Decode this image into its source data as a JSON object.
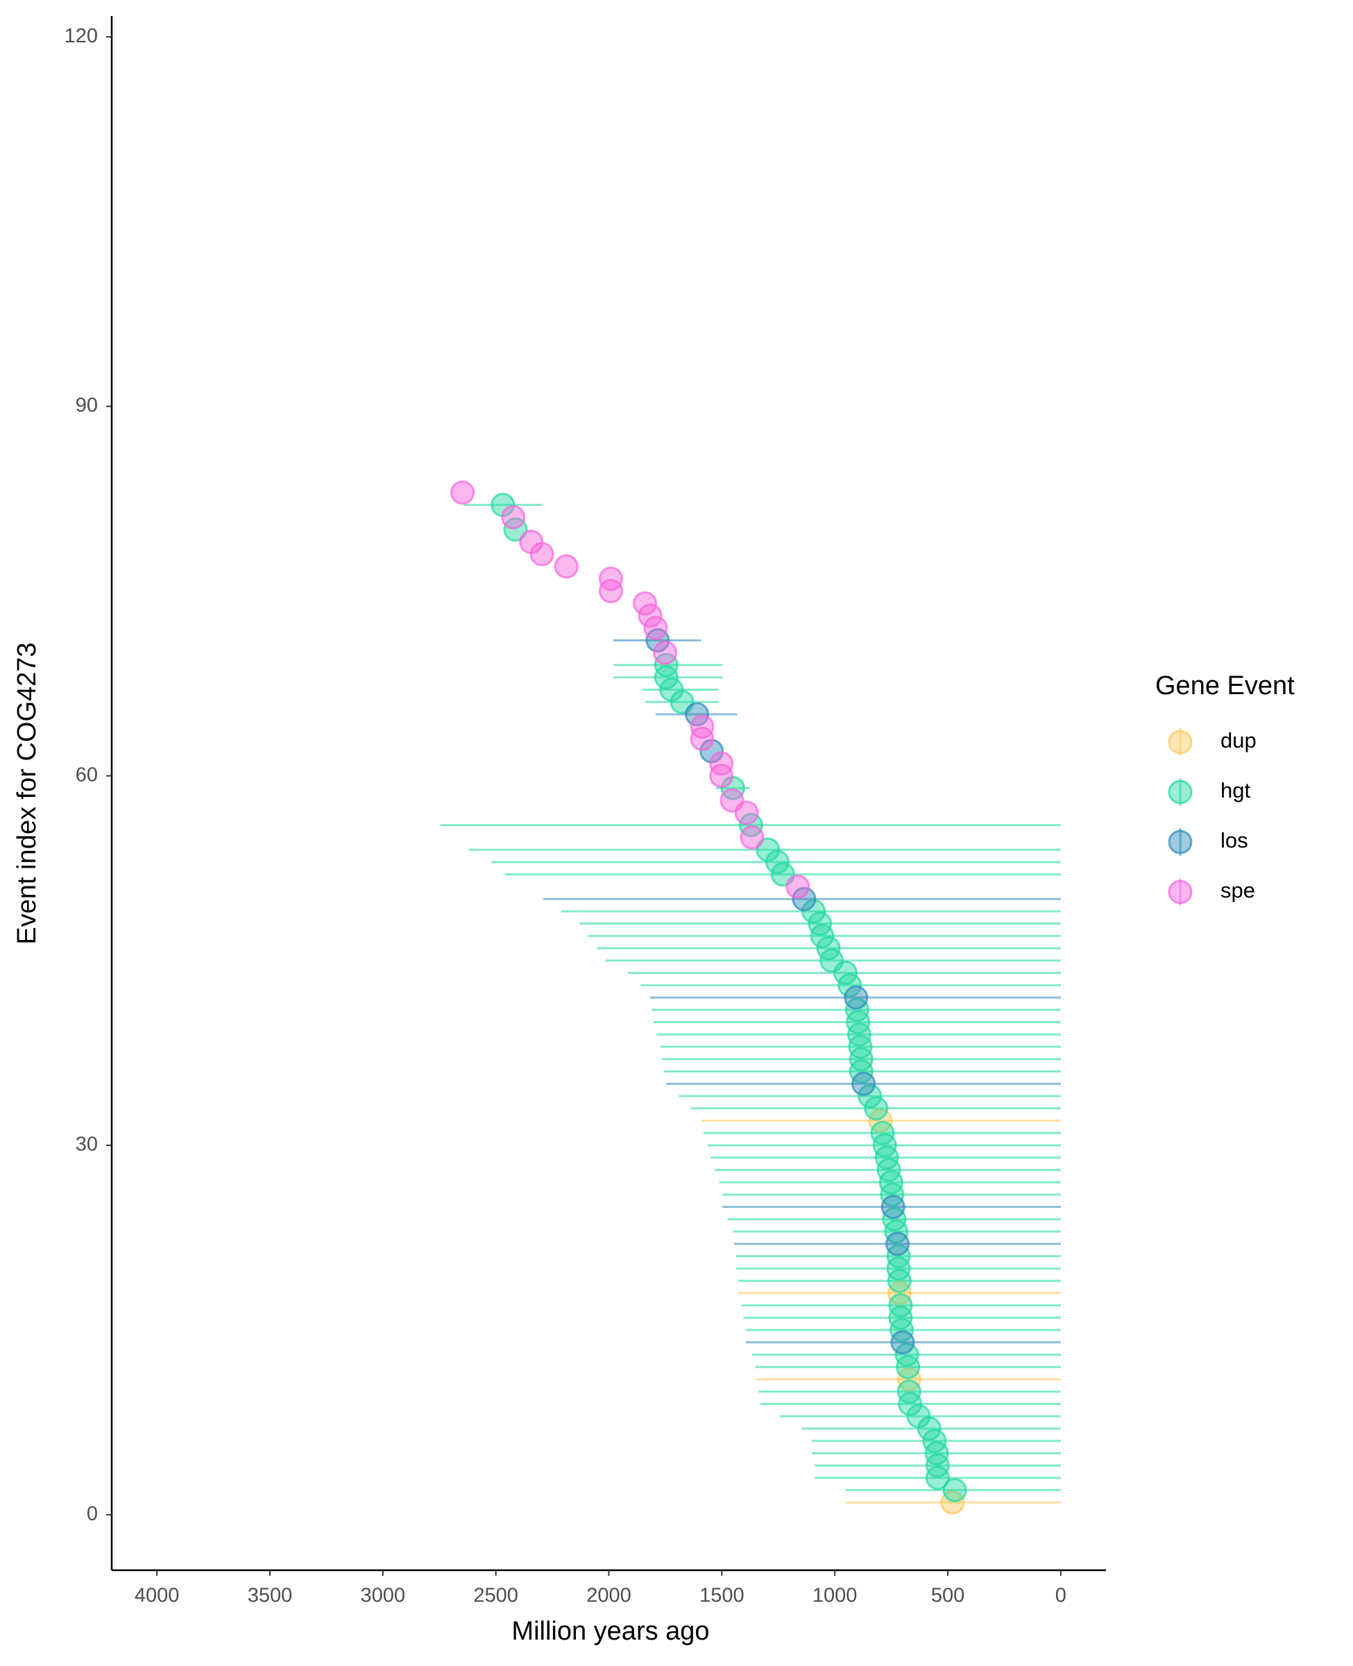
{
  "chart_data": {
    "type": "scatter",
    "x_label": "Million years ago",
    "y_label": "Event index for COG4273",
    "legend_title": "Gene Event",
    "legend_position": "right",
    "xlim": [
      4200,
      -200
    ],
    "ylim": [
      -4.5,
      121.7
    ],
    "xticks": [
      4000,
      3500,
      3000,
      2500,
      2000,
      1500,
      1000,
      500,
      0
    ],
    "yticks": [
      0,
      30,
      60,
      90,
      120
    ],
    "grid": false,
    "series": [
      {
        "name": "dup",
        "color": "#ffc75a",
        "y": [
          1,
          11,
          18,
          32
        ],
        "x": [
          479,
          671,
          714,
          798
        ],
        "xmin": [
          0,
          0,
          0,
          0
        ],
        "xmax": [
          953,
          1352,
          1427,
          1592
        ]
      },
      {
        "name": "hgt",
        "color": "#1ed9a0",
        "y": [
          2,
          3,
          4,
          5,
          6,
          7,
          8,
          9,
          10,
          12,
          13,
          15,
          16,
          17,
          19,
          20,
          21,
          23,
          24,
          26,
          27,
          28,
          29,
          30,
          31,
          33,
          34,
          36,
          37,
          38,
          39,
          40,
          41,
          43,
          44,
          45,
          46,
          47,
          48,
          49,
          52,
          53,
          54,
          56,
          59,
          66,
          67,
          68,
          69,
          80,
          82
        ],
        "x": [
          469,
          545,
          545,
          549,
          559,
          582,
          629,
          667,
          671,
          676,
          681,
          704,
          709,
          709,
          714,
          718,
          718,
          728,
          737,
          746,
          751,
          761,
          770,
          779,
          789,
          817,
          845,
          883,
          883,
          887,
          892,
          897,
          901,
          934,
          953,
          1014,
          1028,
          1056,
          1066,
          1094,
          1230,
          1254,
          1296,
          1371,
          1451,
          1676,
          1723,
          1746,
          1746,
          2413,
          2469
        ],
        "xmin": [
          0,
          0,
          0,
          0,
          0,
          0,
          0,
          0,
          0,
          0,
          0,
          0,
          0,
          0,
          0,
          0,
          0,
          0,
          0,
          0,
          0,
          0,
          0,
          0,
          0,
          0,
          0,
          0,
          0,
          0,
          0,
          0,
          0,
          0,
          0,
          0,
          0,
          0,
          0,
          0,
          0,
          0,
          0,
          0,
          1376,
          1512,
          1516,
          1498,
          1498,
          null,
          2296
        ],
        "xmax": [
          953,
          1089,
          1089,
          1103,
          1103,
          1146,
          1244,
          1329,
          1338,
          1352,
          1366,
          1394,
          1404,
          1413,
          1427,
          1437,
          1437,
          1451,
          1474,
          1498,
          1512,
          1531,
          1549,
          1563,
          1582,
          1638,
          1690,
          1756,
          1765,
          1770,
          1789,
          1803,
          1812,
          1859,
          1915,
          2014,
          2052,
          2094,
          2131,
          2211,
          2460,
          2521,
          2620,
          2746,
          1526,
          1840,
          1854,
          1981,
          1981,
          null,
          2643
        ]
      },
      {
        "name": "los",
        "color": "#2a8ab8",
        "y": [
          14,
          22,
          25,
          35,
          42,
          50,
          62,
          65,
          71
        ],
        "x": [
          700,
          723,
          742,
          873,
          906,
          1136,
          1545,
          1610,
          1784
        ],
        "xmin": [
          0,
          0,
          0,
          0,
          0,
          0,
          null,
          1432,
          1592
        ],
        "xmax": [
          1394,
          1446,
          1498,
          1746,
          1817,
          2291,
          null,
          1793,
          1981
        ]
      },
      {
        "name": "spe",
        "color": "#f762dc",
        "y": [
          51,
          55,
          57,
          58,
          60,
          61,
          63,
          64,
          70,
          72,
          73,
          74,
          75,
          76,
          77,
          78,
          79,
          81,
          83
        ],
        "x": [
          1164,
          1366,
          1390,
          1455,
          1502,
          1502,
          1587,
          1587,
          1751,
          1793,
          1817,
          1840,
          1991,
          1991,
          2188,
          2296,
          2343,
          2423,
          2648
        ]
      }
    ]
  }
}
